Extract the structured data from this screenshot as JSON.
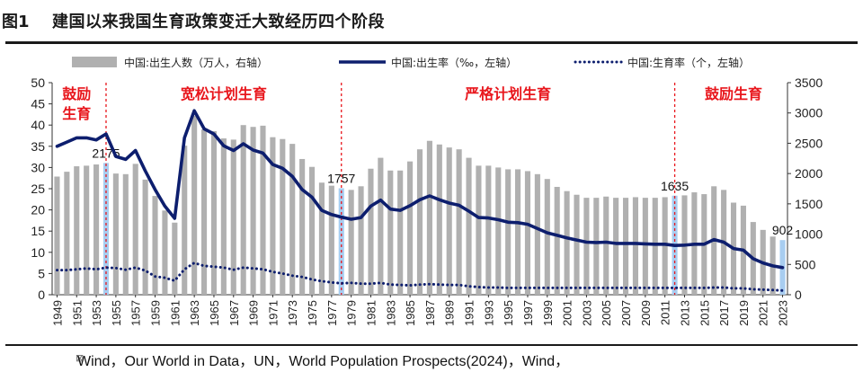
{
  "header": {
    "figure_label": "图1",
    "title": "建国以来我国生育政策变迁大致经历四个阶段"
  },
  "source": {
    "text": "Wind，Our World in Data，UN，World Population Prospects(2024)，Wind，"
  },
  "chart_data": {
    "type": "bar+line",
    "legend": [
      {
        "label": "中国:出生人数（万人，右轴）",
        "style": "bar",
        "color": "#b0b0b0"
      },
      {
        "label": "中国:出生率（‰，左轴）",
        "style": "line",
        "color": "#0d1e6e"
      },
      {
        "label": "中国:生育率（个，左轴）",
        "style": "dotted",
        "color": "#0d1e6e"
      }
    ],
    "legend_position": "top",
    "left_axis": {
      "min": 0,
      "max": 50,
      "ticks": [
        0,
        5,
        10,
        15,
        20,
        25,
        30,
        35,
        40,
        45,
        50
      ]
    },
    "right_axis": {
      "min": 0,
      "max": 3500,
      "ticks": [
        0,
        500,
        1000,
        1500,
        2000,
        2500,
        3000,
        3500
      ]
    },
    "x_tick_labels": [
      "1949",
      "1951",
      "1953",
      "1955",
      "1957",
      "1959",
      "1961",
      "1963",
      "1965",
      "1967",
      "1969",
      "1971",
      "1973",
      "1975",
      "1977",
      "1979",
      "1981",
      "1983",
      "1985",
      "1987",
      "1989",
      "1991",
      "1993",
      "1995",
      "1997",
      "1999",
      "2001",
      "2003",
      "2005",
      "2007",
      "2009",
      "2011",
      "2013",
      "2015",
      "2017",
      "2019",
      "2021",
      "2023"
    ],
    "years": [
      1949,
      1950,
      1951,
      1952,
      1953,
      1954,
      1955,
      1956,
      1957,
      1958,
      1959,
      1960,
      1961,
      1962,
      1963,
      1964,
      1965,
      1966,
      1967,
      1968,
      1969,
      1970,
      1971,
      1972,
      1973,
      1974,
      1975,
      1976,
      1977,
      1978,
      1979,
      1980,
      1981,
      1982,
      1983,
      1984,
      1985,
      1986,
      1987,
      1988,
      1989,
      1990,
      1991,
      1992,
      1993,
      1994,
      1995,
      1996,
      1997,
      1998,
      1999,
      2000,
      2001,
      2002,
      2003,
      2004,
      2005,
      2006,
      2007,
      2008,
      2009,
      2010,
      2011,
      2012,
      2013,
      2014,
      2015,
      2016,
      2017,
      2018,
      2019,
      2020,
      2021,
      2022,
      2023
    ],
    "births": [
      1950,
      2030,
      2120,
      2130,
      2150,
      2175,
      2000,
      1990,
      2160,
      1900,
      1630,
      1390,
      1190,
      2460,
      2954,
      2730,
      2700,
      2580,
      2560,
      2800,
      2770,
      2790,
      2600,
      2570,
      2490,
      2240,
      2110,
      1850,
      1800,
      1757,
      1730,
      1790,
      2080,
      2260,
      2050,
      2050,
      2200,
      2400,
      2540,
      2480,
      2430,
      2400,
      2260,
      2130,
      2130,
      2100,
      2070,
      2070,
      2040,
      1990,
      1910,
      1780,
      1710,
      1650,
      1600,
      1600,
      1620,
      1600,
      1600,
      1610,
      1600,
      1600,
      1610,
      1635,
      1640,
      1690,
      1660,
      1790,
      1730,
      1520,
      1470,
      1200,
      1070,
      960,
      902
    ],
    "birth_rate": [
      35.0,
      36.0,
      37.0,
      37.0,
      36.5,
      37.9,
      32.6,
      31.9,
      34.0,
      29.2,
      24.8,
      20.9,
      18.0,
      37.0,
      43.4,
      39.1,
      37.9,
      35.1,
      34.0,
      35.6,
      34.1,
      33.4,
      30.7,
      29.8,
      27.9,
      24.8,
      23.0,
      19.9,
      18.9,
      18.3,
      17.8,
      18.2,
      20.9,
      22.3,
      20.2,
      19.9,
      21.0,
      22.4,
      23.3,
      22.4,
      21.6,
      21.1,
      19.7,
      18.2,
      18.1,
      17.7,
      17.1,
      17.0,
      16.6,
      15.6,
      14.6,
      14.0,
      13.4,
      12.9,
      12.4,
      12.3,
      12.4,
      12.1,
      12.1,
      12.1,
      12.0,
      11.9,
      11.9,
      11.6,
      11.7,
      11.9,
      11.9,
      13.0,
      12.4,
      10.9,
      10.5,
      8.5,
      7.5,
      6.8,
      6.4
    ],
    "fertility_rate": [
      5.8,
      5.8,
      6.0,
      6.2,
      6.0,
      6.4,
      6.3,
      5.9,
      6.4,
      5.7,
      4.3,
      4.0,
      3.3,
      6.0,
      7.5,
      6.8,
      6.6,
      6.4,
      5.9,
      6.4,
      6.2,
      6.0,
      5.4,
      5.0,
      4.5,
      4.2,
      3.6,
      3.2,
      2.9,
      2.7,
      2.8,
      2.6,
      2.6,
      2.8,
      2.4,
      2.3,
      2.2,
      2.4,
      2.5,
      2.4,
      2.3,
      2.3,
      2.0,
      1.8,
      1.7,
      1.7,
      1.6,
      1.6,
      1.6,
      1.6,
      1.6,
      1.6,
      1.6,
      1.6,
      1.6,
      1.6,
      1.6,
      1.6,
      1.6,
      1.6,
      1.6,
      1.6,
      1.6,
      1.6,
      1.6,
      1.6,
      1.6,
      1.7,
      1.7,
      1.5,
      1.5,
      1.3,
      1.2,
      1.1,
      1.0
    ],
    "highlight_bars": [
      {
        "year": 1954,
        "label": "2175"
      },
      {
        "year": 1978,
        "label": "1757"
      },
      {
        "year": 2012,
        "label": "1635"
      },
      {
        "year": 2023,
        "label": "902"
      }
    ],
    "period_dividers": [
      1954,
      1978,
      2012
    ],
    "period_labels": [
      {
        "text": "鼓励\n生育",
        "center_year": 1951
      },
      {
        "text": "宽松计划生育",
        "center_year": 1966
      },
      {
        "text": "严格计划生育",
        "center_year": 1995
      },
      {
        "text": "鼓励生育",
        "center_year": 2018
      }
    ],
    "colors": {
      "bar": "#b0b0b0",
      "highlight_bar": "#a8cdf0",
      "line": "#0d1e6e",
      "period_text": "#e8161c",
      "divider": "#e8161c"
    }
  }
}
